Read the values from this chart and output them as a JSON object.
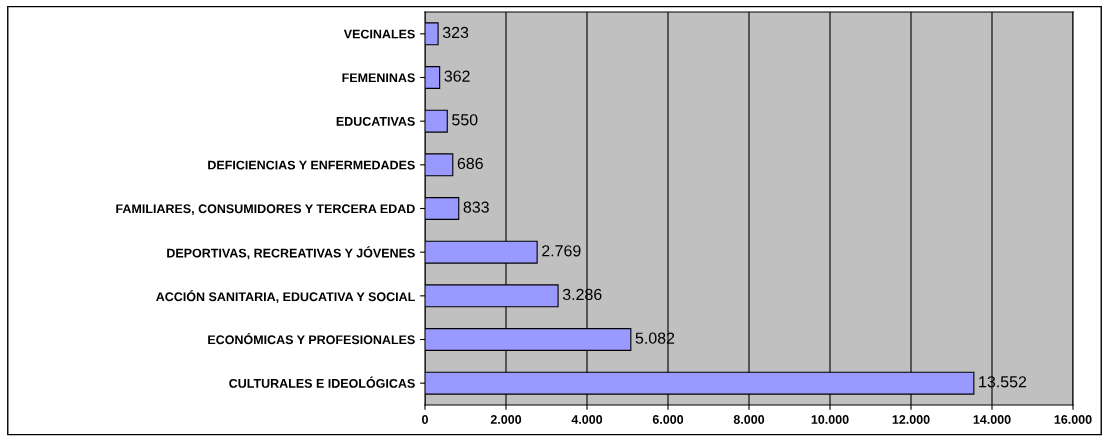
{
  "chart_data": {
    "type": "bar",
    "orientation": "horizontal",
    "categories": [
      "VECINALES",
      "FEMENINAS",
      "EDUCATIVAS",
      "DEFICIENCIAS Y ENFERMEDADES",
      "FAMILIARES, CONSUMIDORES Y TERCERA EDAD",
      "DEPORTIVAS, RECREATIVAS Y JÓVENES",
      "ACCIÓN SANITARIA, EDUCATIVA Y SOCIAL",
      "ECONÓMICAS Y PROFESIONALES",
      "CULTURALES E IDEOLÓGICAS"
    ],
    "values": [
      323,
      362,
      550,
      686,
      833,
      2769,
      3286,
      5082,
      13552
    ],
    "value_labels": [
      "323",
      "362",
      "550",
      "686",
      "833",
      "2.769",
      "3.286",
      "5.082",
      "13.552"
    ],
    "color": "#9999ff",
    "xlim": [
      0,
      16000
    ],
    "xticks": [
      0,
      {
        "value": 2000,
        "label": "2.000"
      },
      {
        "value": 4000,
        "label": "4.000"
      },
      {
        "value": 6000,
        "label": "6.000"
      },
      {
        "value": 8000,
        "label": "8.000"
      },
      {
        "value": 10000,
        "label": "10.000"
      },
      {
        "value": 12000,
        "label": "12.000"
      },
      {
        "value": 14000,
        "label": "14.000"
      },
      {
        "value": 16000,
        "label": "16.000"
      }
    ],
    "grid": "x",
    "legend": false
  }
}
